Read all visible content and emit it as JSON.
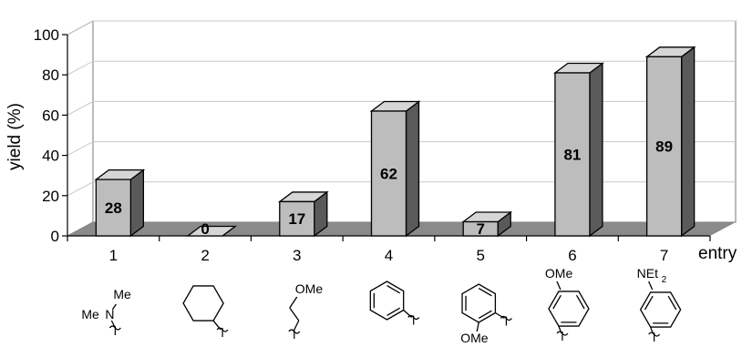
{
  "chart_data": {
    "type": "bar",
    "style": "3d-bar",
    "ylabel": "yield (%)",
    "xlabel": "entry",
    "ylim": [
      0,
      100
    ],
    "yticks": [
      0,
      20,
      40,
      60,
      80,
      100
    ],
    "grid": true,
    "categories": [
      "1",
      "2",
      "3",
      "4",
      "5",
      "6",
      "7"
    ],
    "values": [
      28,
      0,
      17,
      62,
      7,
      81,
      89
    ],
    "data_labels": [
      "28",
      "0",
      "17",
      "62",
      "7",
      "81",
      "89"
    ]
  },
  "structures": [
    {
      "entry": "1",
      "labels": [
        "Me",
        "Me",
        "N"
      ]
    },
    {
      "entry": "2",
      "labels": []
    },
    {
      "entry": "3",
      "labels": [
        "OMe"
      ]
    },
    {
      "entry": "4",
      "labels": []
    },
    {
      "entry": "5",
      "labels": [
        "OMe"
      ]
    },
    {
      "entry": "6",
      "labels": [
        "OMe"
      ]
    },
    {
      "entry": "7",
      "labels": [
        "NEt",
        "2"
      ]
    }
  ],
  "colors": {
    "bar_front": "#bdbdbd",
    "bar_top": "#d6d6d6",
    "bar_side": "#5a5a5a",
    "floor": "#8a8a8a",
    "gridline": "#c8c8c8",
    "axis": "#000000",
    "outline": "#000000"
  }
}
